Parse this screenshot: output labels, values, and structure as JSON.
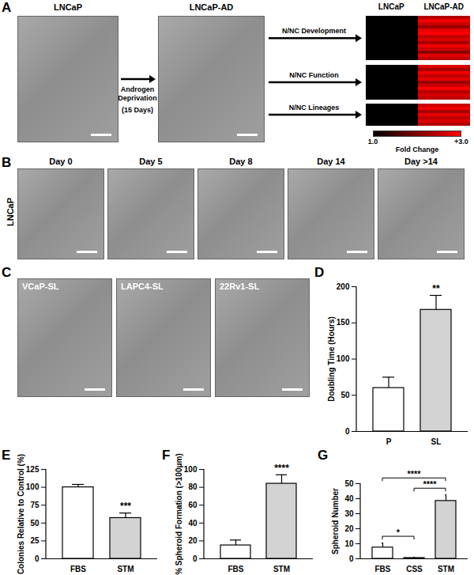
{
  "figure": {
    "A": {
      "title": "A",
      "images": [
        {
          "caption": "LNCaP"
        },
        {
          "caption": "LNCaP-AD"
        }
      ],
      "arrow_text": [
        "Androgen Deprivation",
        "(15 Days)"
      ],
      "heatmap": {
        "columns": [
          "LNCaP",
          "LNCaP-AD"
        ],
        "groups": [
          {
            "name": "N/NC Development",
            "values": [
              [
                1,
                2.4
              ],
              [
                1,
                2.9
              ],
              [
                1,
                2.6
              ],
              [
                1,
                2.2
              ],
              [
                1,
                2.8
              ],
              [
                1,
                3.0
              ],
              [
                1,
                2.5
              ],
              [
                1,
                2.7
              ],
              [
                1,
                2.3
              ],
              [
                1,
                2.9
              ],
              [
                1,
                2.6
              ],
              [
                1,
                2.1
              ],
              [
                1,
                2.8
              ],
              [
                1,
                2.5
              ]
            ]
          },
          {
            "name": "N/NC Function",
            "values": [
              [
                1,
                2.7
              ],
              [
                1,
                2.3
              ],
              [
                1,
                2.9
              ],
              [
                1,
                2.5
              ],
              [
                1,
                2.8
              ],
              [
                1,
                2.2
              ],
              [
                1,
                2.6
              ],
              [
                1,
                3.0
              ],
              [
                1,
                2.4
              ],
              [
                1,
                2.7
              ],
              [
                1,
                2.5
              ]
            ]
          },
          {
            "name": "N/NC Lineages",
            "values": [
              [
                1,
                2.6
              ],
              [
                1,
                2.9
              ],
              [
                1,
                2.3
              ],
              [
                1,
                2.8
              ],
              [
                1,
                2.5
              ],
              [
                1,
                2.7
              ],
              [
                1,
                2.4
              ]
            ]
          }
        ],
        "colorbar": {
          "range": [
            1,
            3
          ],
          "ticks": [
            {
              "value": 1,
              "label": "1.0"
            },
            {
              "value": 3,
              "label": "+3.0"
            }
          ],
          "label": "Fold Change"
        }
      }
    },
    "B": {
      "title": "B",
      "row_label": "LNCaP",
      "images": [
        {
          "caption": "Day 0"
        },
        {
          "caption": "Day 5"
        },
        {
          "caption": "Day 8"
        },
        {
          "caption": "Day 14"
        },
        {
          "caption": "Day >14"
        }
      ]
    },
    "C": {
      "title": "C",
      "images": [
        {
          "caption": "VCaP-SL"
        },
        {
          "caption": "LAPC4-SL"
        },
        {
          "caption": "22Rv1-SL"
        }
      ]
    }
  },
  "chart_data": [
    {
      "title": "D",
      "type": "bar",
      "categories": [
        "P",
        "SL"
      ],
      "values": [
        60,
        168
      ],
      "errors": [
        15,
        20
      ],
      "colors": [
        "#ffffff",
        "#d3d3d3"
      ],
      "y_label": "Doubling Time (Hours)",
      "ylim": [
        0,
        200
      ],
      "yticks": [
        0,
        50,
        100,
        150,
        200
      ],
      "annotations": [
        {
          "category": "SL",
          "label": "**"
        }
      ]
    },
    {
      "title": "E",
      "type": "bar",
      "categories": [
        "FBS",
        "STM"
      ],
      "values": [
        100,
        57
      ],
      "errors": [
        4,
        7
      ],
      "colors": [
        "#ffffff",
        "#d3d3d3"
      ],
      "y_label": "Colonies Relative to Control (%)",
      "ylim": [
        0,
        125
      ],
      "yticks": [
        0,
        25,
        50,
        75,
        100,
        125
      ],
      "annotations": [
        {
          "category": "STM",
          "label": "***"
        }
      ]
    },
    {
      "title": "F",
      "type": "bar",
      "categories": [
        "FBS",
        "STM"
      ],
      "values": [
        15,
        84
      ],
      "errors": [
        6,
        10
      ],
      "colors": [
        "#ffffff",
        "#d3d3d3"
      ],
      "y_label": "% Spheroid Formation (>100μm)",
      "ylim": [
        0,
        100
      ],
      "yticks": [
        0,
        20,
        40,
        60,
        80,
        100
      ],
      "annotations": [
        {
          "category": "STM",
          "label": "****"
        }
      ]
    },
    {
      "title": "G",
      "type": "bar",
      "categories": [
        "FBS",
        "CSS",
        "STM"
      ],
      "values": [
        7.5,
        0.5,
        38.5
      ],
      "errors": [
        3,
        0.5,
        4
      ],
      "colors": [
        "#ffffff",
        "#ffffff",
        "#d3d3d3"
      ],
      "y_label": "Spheroid Number",
      "ylim": [
        0,
        50
      ],
      "yticks": [
        0,
        10,
        20,
        30,
        40,
        50
      ],
      "comparisons": [
        {
          "from": "FBS",
          "to": "CSS",
          "label": "*"
        },
        {
          "from": "FBS",
          "to": "STM",
          "label": "****"
        },
        {
          "from": "CSS",
          "to": "STM",
          "label": "****"
        }
      ]
    }
  ]
}
